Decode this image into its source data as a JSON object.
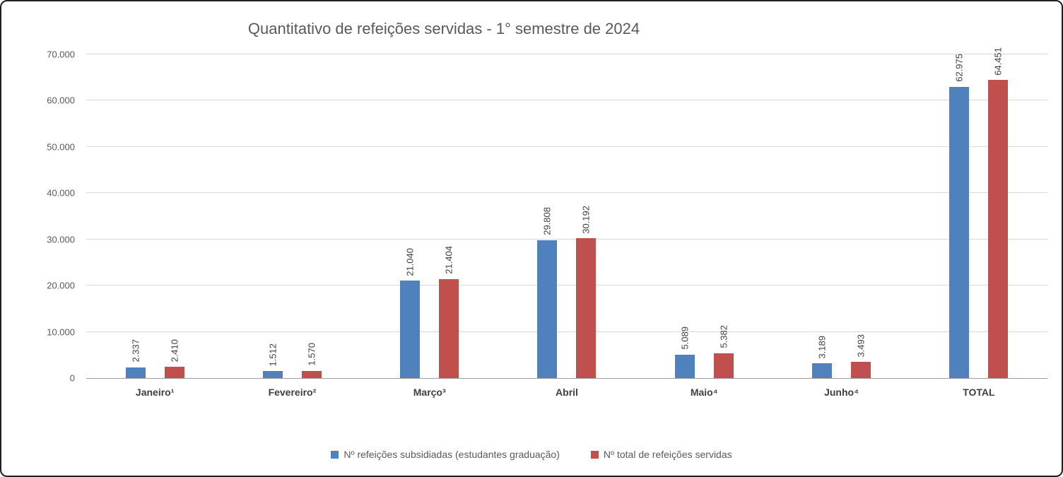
{
  "chart_data": {
    "type": "bar",
    "title": "Quantitativo de refeições servidas - 1° semestre de 2024",
    "categories": [
      "Janeiro¹",
      "Fevereiro²",
      "Março³",
      "Abril",
      "Maio⁴",
      "Junho⁴",
      "TOTAL"
    ],
    "series": [
      {
        "name": "Nº refeições subsidiadas (estudantes graduação)",
        "color": "#4F81BD",
        "values": [
          2337,
          1512,
          21040,
          29808,
          5089,
          3189,
          62975
        ],
        "value_labels": [
          "2.337",
          "1.512",
          "21.040",
          "29.808",
          "5.089",
          "3.189",
          "62.975"
        ]
      },
      {
        "name": "Nº total de refeições servidas",
        "color": "#C0504D",
        "values": [
          2410,
          1570,
          21404,
          30192,
          5382,
          3493,
          64451
        ],
        "value_labels": [
          "2.410",
          "1.570",
          "21.404",
          "30.192",
          "5.382",
          "3.493",
          "64.451"
        ]
      }
    ],
    "ylim": [
      0,
      70000
    ],
    "ytick_step": 10000,
    "ytick_labels": [
      "0",
      "10.000",
      "20.000",
      "30.000",
      "40.000",
      "50.000",
      "60.000",
      "70.000"
    ],
    "grid": true,
    "legend_position": "bottom"
  }
}
